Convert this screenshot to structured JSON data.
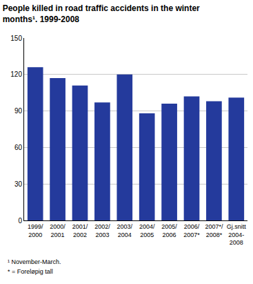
{
  "chart_data": {
    "type": "bar",
    "title": "People killed in road traffic accidents in the winter\nmonths¹. 1999-2008",
    "categories": [
      "1999/\n2000",
      "2000/\n2001",
      "2001/\n2002",
      "2002/\n2003",
      "2003/\n2004",
      "2004/\n2005",
      "2005/\n2006",
      "2006/\n2007*",
      "2007*/\n2008*",
      "Gj.snitt\n2004-\n2008"
    ],
    "values": [
      126,
      117,
      111,
      97,
      120,
      88,
      96,
      102,
      98,
      101
    ],
    "color": "#243a9c",
    "ylim": [
      0,
      150
    ],
    "yticks": [
      0,
      30,
      60,
      90,
      120,
      150
    ],
    "grid": true,
    "notes": [
      "¹ November-March.",
      "* = Foreløpig tall"
    ]
  }
}
